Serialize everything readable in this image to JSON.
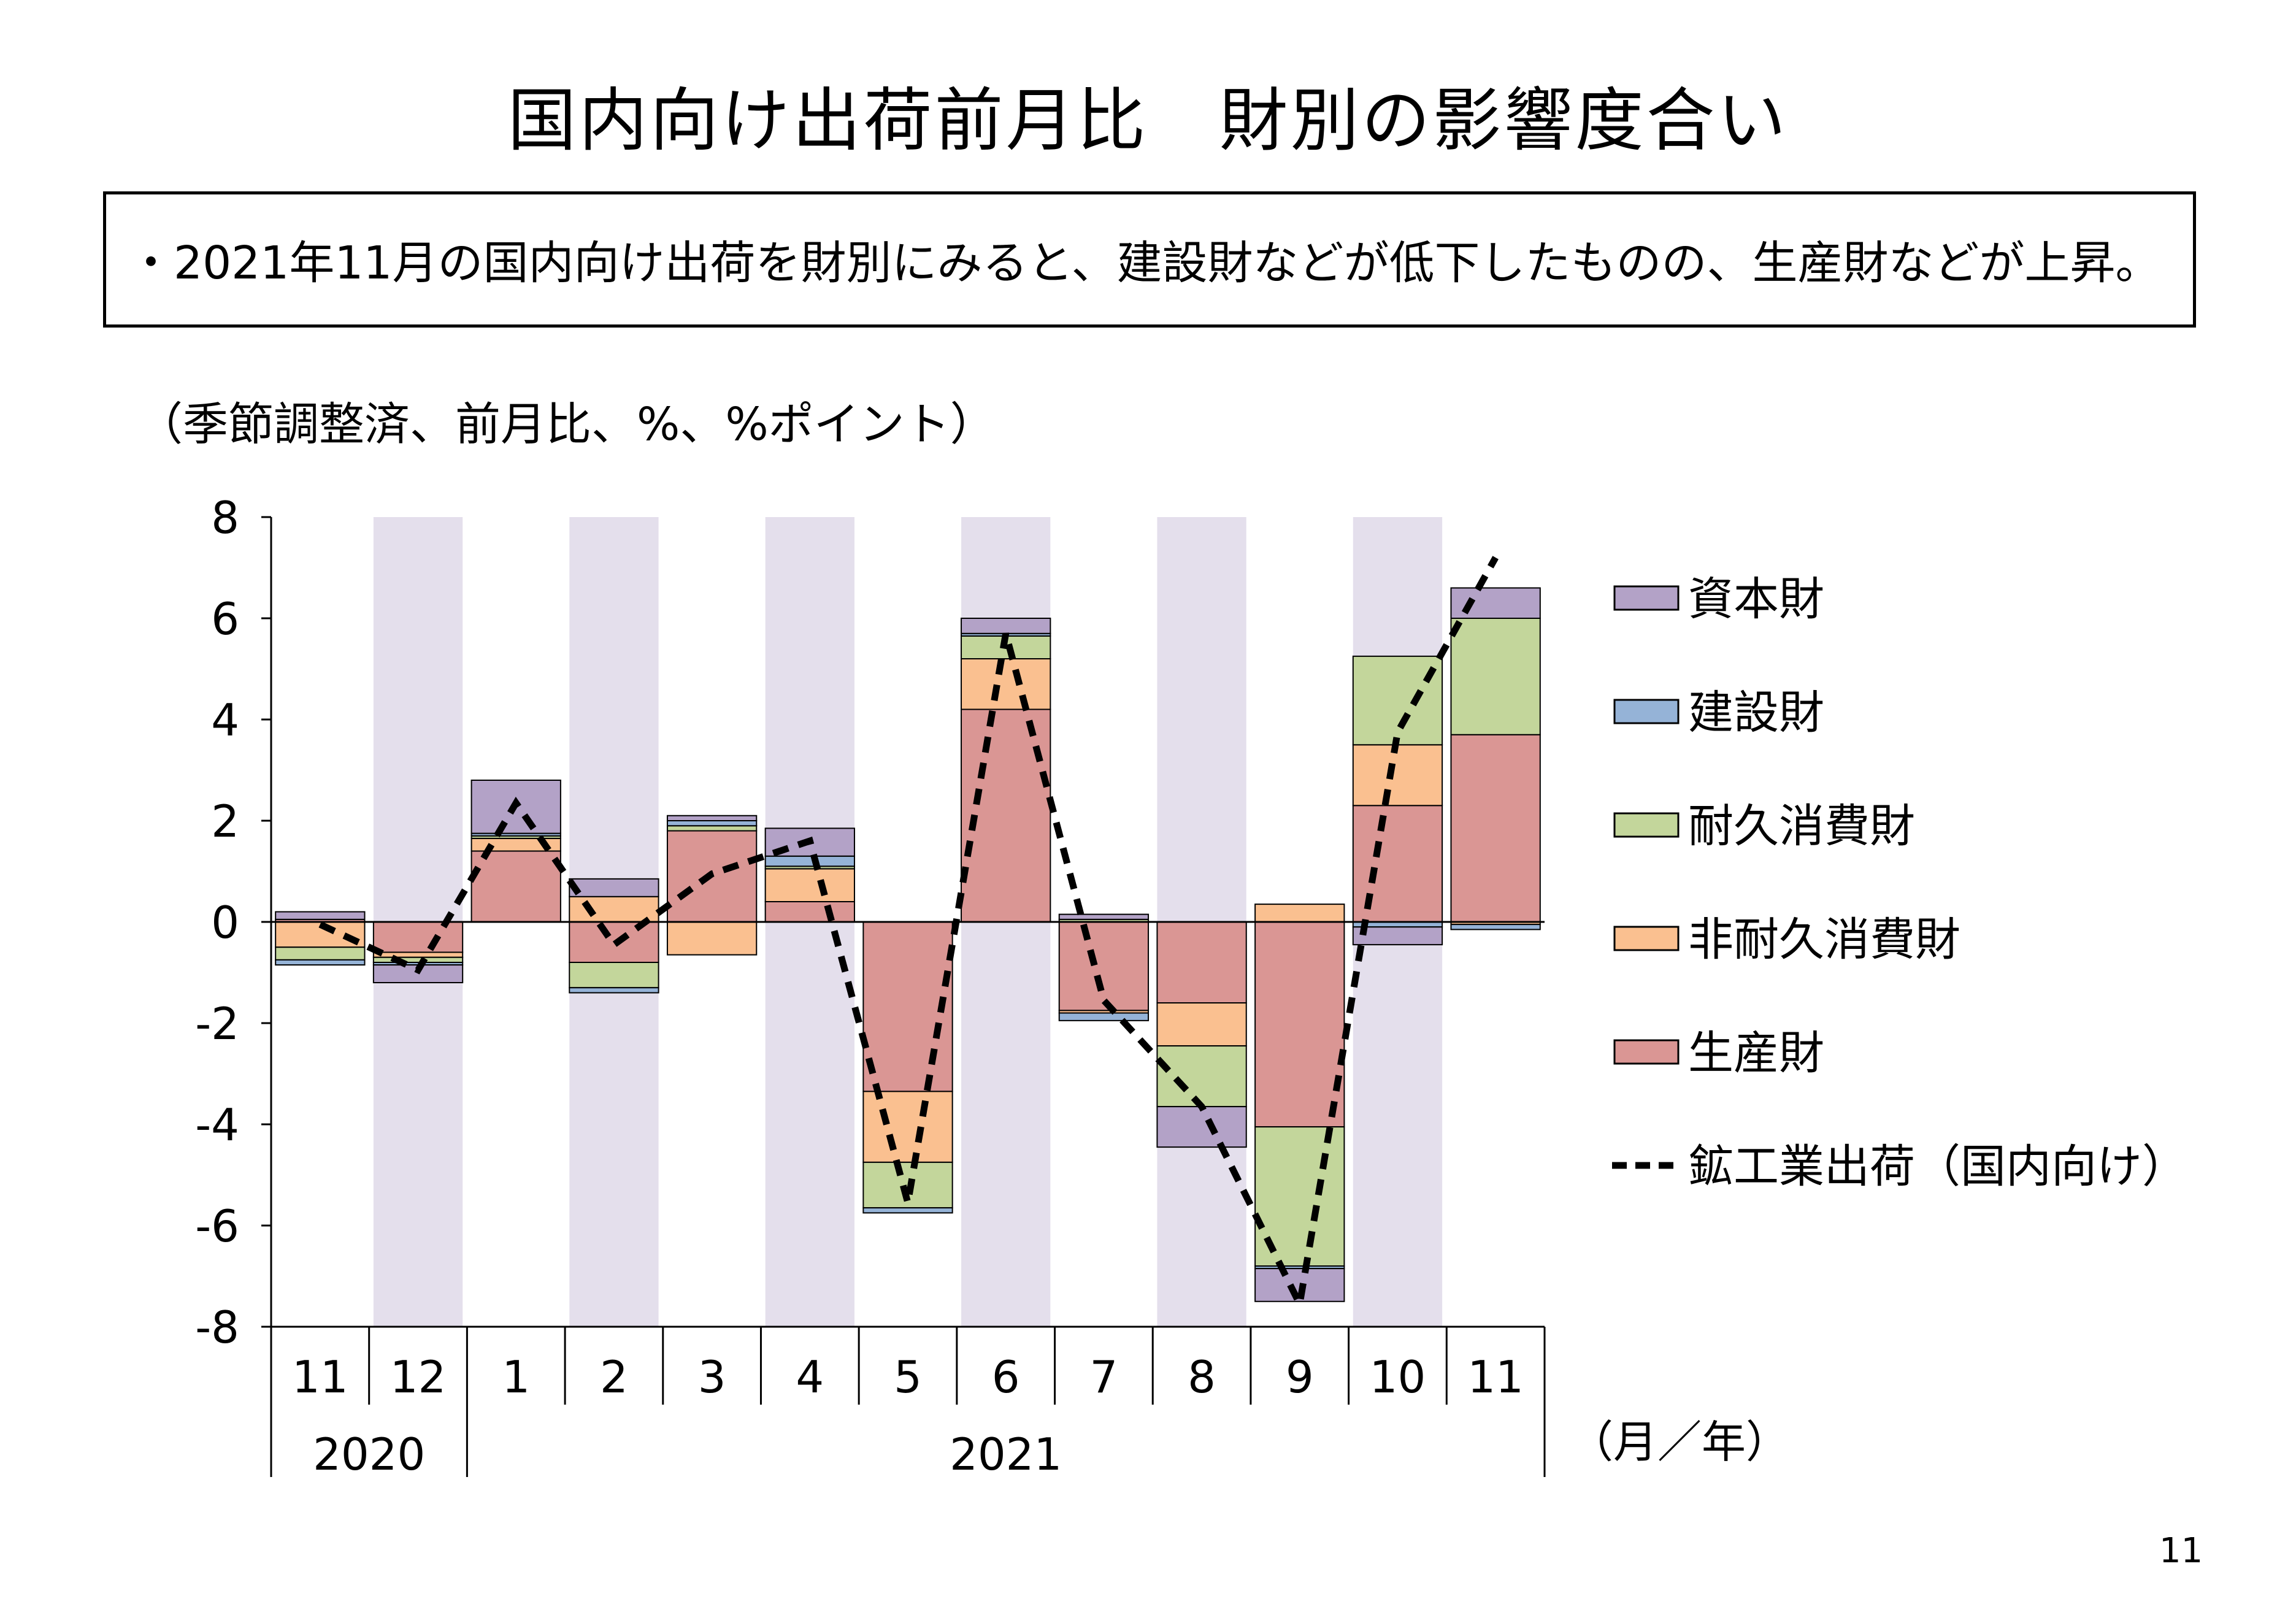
{
  "page": {
    "title": "国内向け出荷前月比　財別の影響度合い",
    "summary": "・2021年11月の国内向け出荷を財別にみると、建設財などが低下したものの、生産財などが上昇。",
    "unit_note": "（季節調整済、前月比、%、%ポイント）",
    "page_number": "11"
  },
  "chart_data": {
    "type": "bar",
    "stacked": true,
    "ylim": [
      -8,
      8
    ],
    "yticks": [
      "8",
      "6",
      "4",
      "2",
      "0",
      "-2",
      "-4",
      "-6",
      "-8"
    ],
    "ytick_values": [
      8,
      6,
      4,
      2,
      0,
      -2,
      -4,
      -6,
      -8
    ],
    "categories": [
      "11",
      "12",
      "1",
      "2",
      "3",
      "4",
      "5",
      "6",
      "7",
      "8",
      "9",
      "10",
      "11"
    ],
    "year_groups": [
      {
        "label": "2020",
        "start": 0,
        "count": 2
      },
      {
        "label": "2021",
        "start": 2,
        "count": 11
      }
    ],
    "shaded_columns": [
      1,
      3,
      5,
      7,
      9,
      11
    ],
    "x_unit_label": "（月／年）",
    "series": [
      {
        "name": "生産財",
        "color": "#DA9694",
        "values": [
          0.05,
          -0.6,
          1.4,
          -0.8,
          1.8,
          0.4,
          -3.35,
          4.2,
          -1.75,
          -1.6,
          -4.05,
          2.3,
          3.7
        ]
      },
      {
        "name": "非耐久消費財",
        "color": "#FAC090",
        "values": [
          -0.5,
          -0.1,
          0.25,
          0.5,
          -0.65,
          0.65,
          -1.4,
          1.0,
          -0.05,
          -0.85,
          0.35,
          1.2,
          -0.05
        ]
      },
      {
        "name": "耐久消費財",
        "color": "#C3D69B",
        "values": [
          -0.25,
          -0.1,
          0.05,
          -0.5,
          0.1,
          0.05,
          -0.9,
          0.45,
          0.05,
          -1.2,
          -2.75,
          1.75,
          2.3
        ]
      },
      {
        "name": "建設財",
        "color": "#95B3D7",
        "values": [
          -0.1,
          -0.05,
          0.05,
          -0.1,
          0.1,
          0.2,
          -0.1,
          0.05,
          -0.15,
          0.0,
          -0.05,
          -0.1,
          -0.1
        ]
      },
      {
        "name": "資本財",
        "color": "#B3A2C7",
        "values": [
          0.15,
          -0.35,
          1.05,
          0.35,
          0.1,
          0.55,
          0.0,
          0.3,
          0.1,
          -0.8,
          -0.65,
          -0.35,
          0.6
        ]
      }
    ],
    "line": {
      "name": "鉱工業出荷（国内向け）",
      "color": "#000000",
      "values": [
        -0.05,
        -0.95,
        2.35,
        -0.45,
        0.95,
        1.6,
        -5.55,
        5.7,
        -1.55,
        -3.65,
        -7.55,
        3.75,
        7.2
      ]
    },
    "legend": [
      "資本財",
      "建設財",
      "耐久消費財",
      "非耐久消費財",
      "生産財",
      "鉱工業出荷（国内向け）"
    ],
    "legend_colors": [
      "#B3A2C7",
      "#95B3D7",
      "#C3D69B",
      "#FAC090",
      "#DA9694",
      "#000000"
    ],
    "shade_color": "#E4DFEC"
  }
}
